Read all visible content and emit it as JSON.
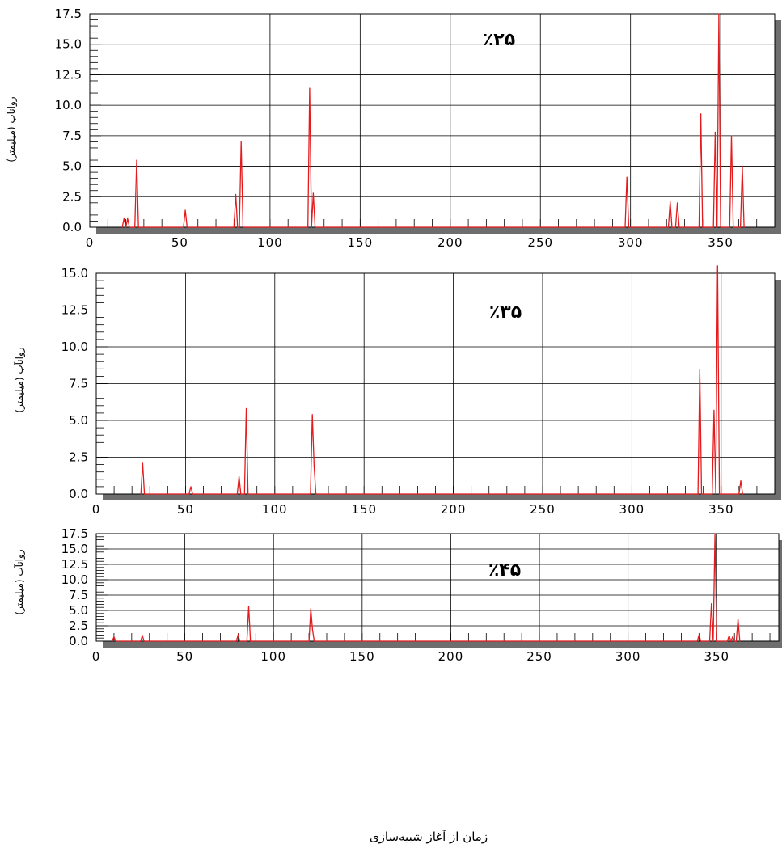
{
  "x_axis_title": "زمان از آغاز شبیه‌سازی",
  "colors": {
    "series": "#e41a1c",
    "grid": "#000000",
    "shadow": "#6e6e6e",
    "background": "#ffffff"
  },
  "chart_data": [
    {
      "type": "line",
      "panel_label": "٪۲۵",
      "ylabel": "روانآب (میلیمتر)",
      "xlim": [
        0,
        380
      ],
      "ylim": [
        0,
        17.5
      ],
      "x_ticks": [
        0,
        50,
        100,
        150,
        200,
        250,
        300,
        350
      ],
      "x_tick_labels": [
        "0",
        "50",
        "100",
        "150",
        "200",
        "250",
        "300",
        "350"
      ],
      "y_ticks": [
        0,
        2.5,
        5,
        7.5,
        10,
        12.5,
        15,
        17.5
      ],
      "y_tick_labels": [
        "0.0",
        "2.5",
        "5.0",
        "7.5",
        "10.0",
        "12.5",
        "15.0",
        "17.5"
      ],
      "grid": true,
      "legend": "none",
      "x": [
        18,
        19,
        20,
        21,
        22,
        25,
        26,
        27,
        52,
        53,
        54,
        80,
        81,
        82,
        83,
        84,
        85,
        86,
        87,
        120,
        121,
        122,
        123,
        124,
        125,
        297,
        298,
        299,
        321,
        322,
        323,
        325,
        326,
        327,
        338,
        339,
        340,
        346,
        347,
        348,
        349,
        350,
        351,
        355,
        356,
        357,
        358,
        361,
        362,
        363
      ],
      "y": [
        0,
        0.7,
        0,
        0.7,
        0,
        0,
        5.5,
        0,
        0,
        1.4,
        0,
        0,
        2.7,
        0,
        0,
        7,
        0,
        0,
        0,
        0,
        0,
        11.4,
        0,
        2.8,
        0,
        0,
        4.1,
        0,
        0,
        2.1,
        0,
        0,
        2,
        0,
        0,
        9.3,
        0,
        0,
        7.8,
        0,
        17.5,
        0,
        0,
        0,
        7.5,
        0,
        0,
        0,
        5,
        0
      ]
    },
    {
      "type": "line",
      "panel_label": "٪۳۵",
      "ylabel": "روانآب (میلیمتر)",
      "xlim": [
        0,
        380
      ],
      "ylim": [
        0,
        15
      ],
      "x_ticks": [
        0,
        50,
        100,
        150,
        200,
        250,
        300,
        350
      ],
      "x_tick_labels": [
        "0",
        "50",
        "100",
        "150",
        "200",
        "250",
        "300",
        "350"
      ],
      "y_ticks": [
        0,
        2.5,
        5,
        7.5,
        10,
        12.5,
        15
      ],
      "y_tick_labels": [
        "0.0",
        "2.5",
        "5.0",
        "7.5",
        "10.0",
        "12.5",
        "15.0"
      ],
      "grid": true,
      "legend": "none",
      "x": [
        25,
        26,
        27,
        52,
        53,
        54,
        79,
        80,
        81,
        83,
        84,
        85,
        119,
        120,
        121,
        122,
        123,
        124,
        337,
        338,
        339,
        345,
        346,
        347,
        348,
        349,
        360,
        361,
        362
      ],
      "y": [
        0,
        2.1,
        0,
        0,
        0.5,
        0,
        0,
        1.2,
        0,
        0,
        5.8,
        0,
        0,
        0,
        5.4,
        1.9,
        0,
        0,
        0,
        8.5,
        0,
        0,
        5.7,
        0,
        15.5,
        0,
        0,
        0.9,
        0
      ]
    },
    {
      "type": "line",
      "panel_label": "٪۴۵",
      "ylabel": "روانآب (میلیمتر)",
      "xlim": [
        0,
        385
      ],
      "ylim": [
        0,
        17.5
      ],
      "x_ticks": [
        0,
        50,
        100,
        150,
        200,
        250,
        300,
        350
      ],
      "x_tick_labels": [
        "0",
        "50",
        "100",
        "150",
        "200",
        "250",
        "300",
        "350"
      ],
      "y_ticks": [
        0,
        2.5,
        5,
        7.5,
        10,
        12.5,
        15,
        17.5
      ],
      "y_tick_labels": [
        "0.0",
        "2.5",
        "5.0",
        "7.5",
        "10.0",
        "12.5",
        "15.0",
        "17.5"
      ],
      "grid": true,
      "legend": "none",
      "x": [
        9,
        10,
        11,
        25,
        26,
        27,
        79,
        80,
        81,
        85,
        86,
        87,
        119,
        120,
        121,
        122,
        123,
        124,
        339,
        340,
        341,
        346,
        347,
        348,
        349,
        350,
        356,
        357,
        358,
        359,
        360,
        361,
        362,
        363
      ],
      "y": [
        0,
        0.7,
        0,
        0,
        0.9,
        0,
        0,
        1,
        0,
        0,
        5.7,
        0,
        0,
        0,
        5.3,
        1.9,
        0,
        0,
        0,
        1,
        0,
        0,
        6.1,
        0,
        17.5,
        0,
        0,
        0.9,
        0,
        0.7,
        0,
        0,
        3.6,
        0
      ]
    }
  ]
}
